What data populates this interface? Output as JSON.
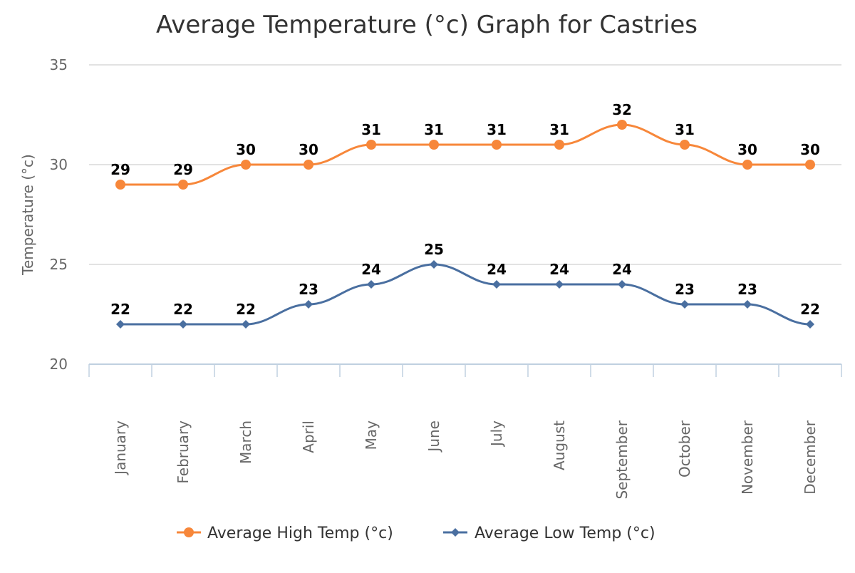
{
  "chart_data": {
    "type": "line",
    "title": "Average Temperature (°c) Graph for Castries",
    "ylabel": "Temperature (°c)",
    "xlabel": "",
    "categories": [
      "January",
      "February",
      "March",
      "April",
      "May",
      "June",
      "July",
      "August",
      "September",
      "October",
      "November",
      "December"
    ],
    "ylim": [
      20,
      35
    ],
    "yticks": [
      20,
      25,
      30,
      35
    ],
    "grid": true,
    "legend_position": "bottom",
    "series": [
      {
        "name": "Average High Temp (°c)",
        "color": "#f7873a",
        "marker": "circle",
        "values": [
          29,
          29,
          30,
          30,
          31,
          31,
          31,
          31,
          32,
          31,
          30,
          30
        ]
      },
      {
        "name": "Average Low Temp (°c)",
        "color": "#4a6fa0",
        "marker": "diamond",
        "values": [
          22,
          22,
          22,
          23,
          24,
          25,
          24,
          24,
          24,
          23,
          23,
          22
        ]
      }
    ]
  }
}
